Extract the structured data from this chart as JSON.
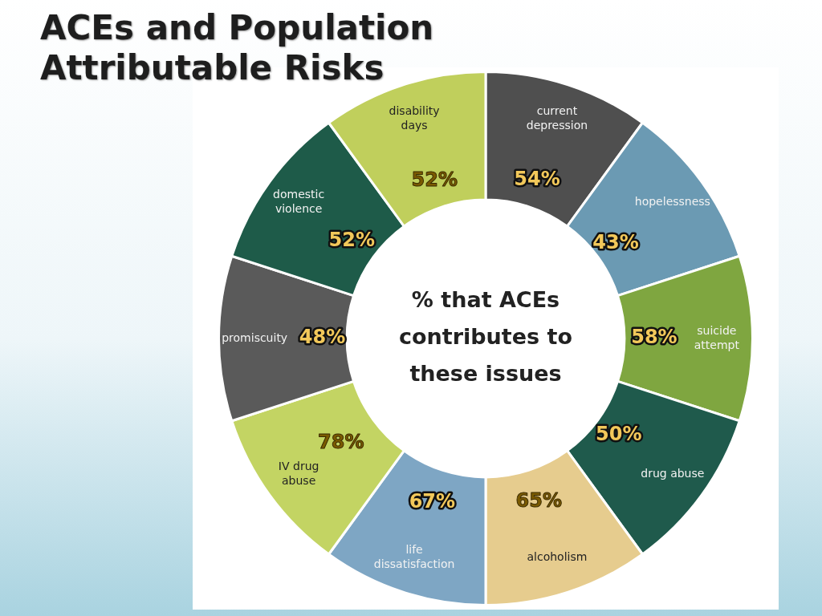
{
  "chart_data": {
    "type": "other",
    "title": "ACEs and Population Attributable Risks",
    "categories": [
      "current depression",
      "hopelessness",
      "suicide attempt",
      "drug abuse",
      "alcoholism",
      "life dissatisfaction",
      "IV drug abuse",
      "promiscuity",
      "domestic violence",
      "disability days"
    ],
    "values": [
      54,
      43,
      58,
      50,
      65,
      67,
      78,
      48,
      52,
      52
    ],
    "value_labels": [
      "54%",
      "43%",
      "58%",
      "50%",
      "65%",
      "67%",
      "78%",
      "48%",
      "52%",
      "52%"
    ],
    "colors": [
      "#4f4f4f",
      "#6b9ab3",
      "#7fa640",
      "#1f5a4c",
      "#e6cc8e",
      "#7ea6c4",
      "#c3d463",
      "#5a5a5a",
      "#1e5b49",
      "#c0cf5c"
    ],
    "annotations": [
      "% that ACEs contributes to these issues"
    ]
  }
}
